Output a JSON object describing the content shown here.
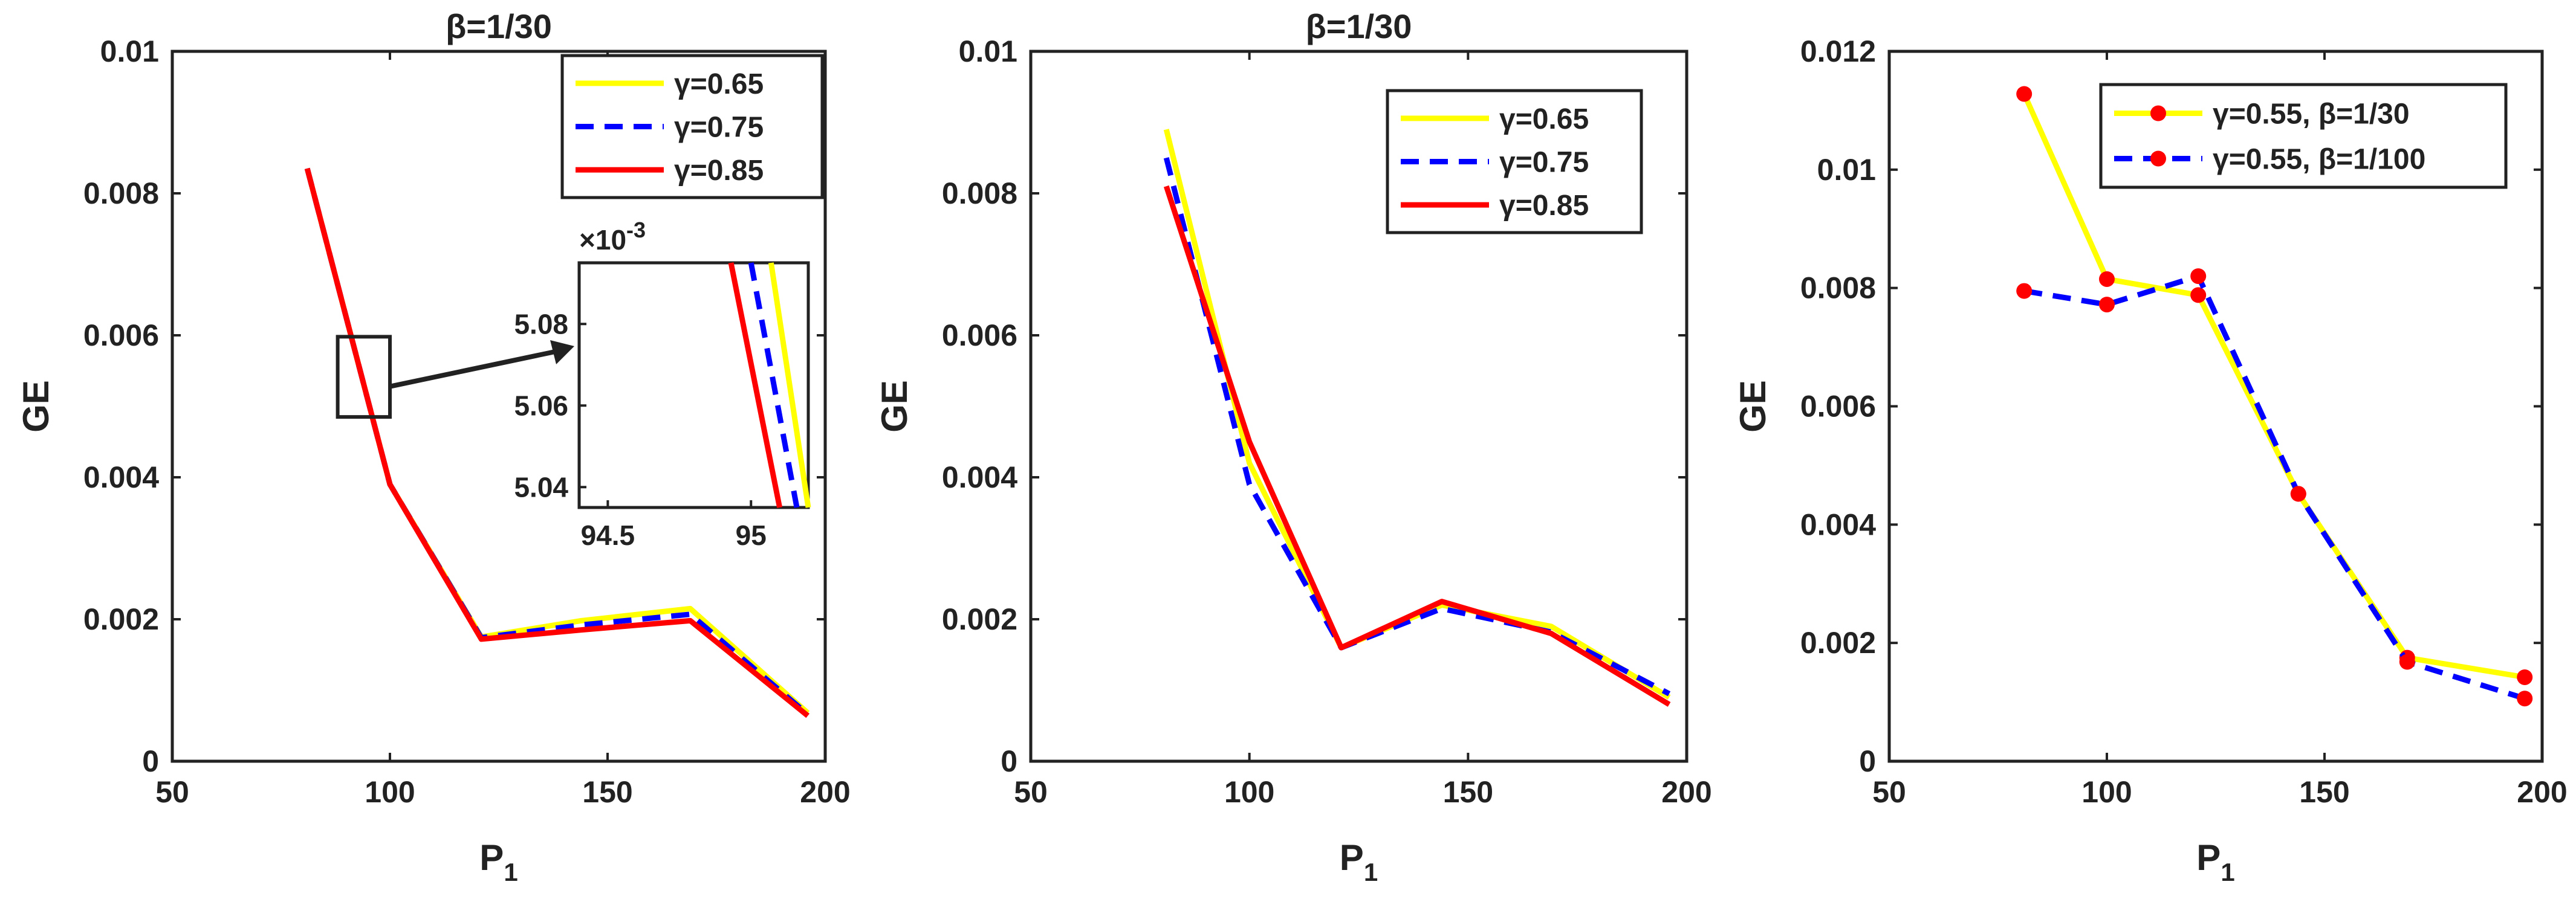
{
  "chart_data": [
    {
      "type": "line",
      "title": "β=1/30",
      "xlabel": "P",
      "xlabel_sub": "1",
      "ylabel": "GE",
      "xlim": [
        50,
        200
      ],
      "ylim": [
        0,
        0.01
      ],
      "x_ticks": [
        "50",
        "100",
        "150",
        "200"
      ],
      "y_ticks": [
        "0",
        "0.002",
        "0.004",
        "0.006",
        "0.008",
        "0.01"
      ],
      "legend_position": "top-right",
      "series": [
        {
          "name": "γ=0.65",
          "color": "#ffff00",
          "dash": "solid",
          "x": [
            81,
            100,
            121,
            144,
            169,
            196
          ],
          "y": [
            0.00835,
            0.0039,
            0.00175,
            0.00198,
            0.00215,
            0.00068
          ]
        },
        {
          "name": "γ=0.75",
          "color": "#0000ff",
          "dash": "dashed",
          "x": [
            81,
            100,
            121,
            144,
            169,
            196
          ],
          "y": [
            0.00835,
            0.0039,
            0.00174,
            0.00192,
            0.00207,
            0.00066
          ]
        },
        {
          "name": "γ=0.85",
          "color": "#ff0000",
          "dash": "solid",
          "x": [
            81,
            100,
            121,
            144,
            169,
            196
          ],
          "y": [
            0.00835,
            0.0039,
            0.00172,
            0.00185,
            0.00198,
            0.00064
          ]
        }
      ],
      "inset": {
        "exponent_label": "×10",
        "exponent_sup": "-3",
        "xlim": [
          94.4,
          95.2
        ],
        "ylim": [
          5.035,
          5.095
        ],
        "x_ticks": [
          "94.5",
          "95"
        ],
        "y_ticks": [
          "5.04",
          "5.06",
          "5.08"
        ],
        "series": [
          {
            "name": "γ=0.65",
            "color": "#ffff00",
            "dash": "solid",
            "x": [
              95.07,
              95.2
            ],
            "y": [
              5.095,
              5.035
            ]
          },
          {
            "name": "γ=0.75",
            "color": "#0000ff",
            "dash": "dashed",
            "x": [
              95.0,
              95.16
            ],
            "y": [
              5.095,
              5.035
            ]
          },
          {
            "name": "γ=0.85",
            "color": "#ff0000",
            "dash": "solid",
            "x": [
              94.93,
              95.1
            ],
            "y": [
              5.095,
              5.035
            ]
          }
        ]
      }
    },
    {
      "type": "line",
      "title": "β=1/30",
      "xlabel": "P",
      "xlabel_sub": "1",
      "ylabel": "GE",
      "xlim": [
        50,
        200
      ],
      "ylim": [
        0,
        0.01
      ],
      "x_ticks": [
        "50",
        "100",
        "150",
        "200"
      ],
      "y_ticks": [
        "0",
        "0.002",
        "0.004",
        "0.006",
        "0.008",
        "0.01"
      ],
      "legend_position": "top-right",
      "series": [
        {
          "name": "γ=0.65",
          "color": "#ffff00",
          "dash": "solid",
          "x": [
            81,
            100,
            121,
            144,
            169,
            196
          ],
          "y": [
            0.0089,
            0.0042,
            0.0016,
            0.0022,
            0.0019,
            0.0009
          ]
        },
        {
          "name": "γ=0.75",
          "color": "#0000ff",
          "dash": "dashed",
          "x": [
            81,
            100,
            121,
            144,
            169,
            196
          ],
          "y": [
            0.0085,
            0.0039,
            0.0016,
            0.00215,
            0.00182,
            0.00095
          ]
        },
        {
          "name": "γ=0.85",
          "color": "#ff0000",
          "dash": "solid",
          "x": [
            81,
            100,
            121,
            144,
            169,
            196
          ],
          "y": [
            0.0081,
            0.0045,
            0.0016,
            0.00225,
            0.0018,
            0.0008
          ]
        }
      ]
    },
    {
      "type": "line",
      "title": "",
      "xlabel": "P",
      "xlabel_sub": "1",
      "ylabel": "GE",
      "xlim": [
        50,
        200
      ],
      "ylim": [
        0,
        0.012
      ],
      "x_ticks": [
        "50",
        "100",
        "150",
        "200"
      ],
      "y_ticks": [
        "0",
        "0.002",
        "0.004",
        "0.006",
        "0.008",
        "0.01",
        "0.012"
      ],
      "legend_position": "top-right",
      "series": [
        {
          "name": "γ=0.55, β=1/30",
          "color": "#ffff00",
          "dash": "solid",
          "marker": "#ff0000",
          "x": [
            81,
            100,
            121,
            144,
            169,
            196
          ],
          "y": [
            0.01128,
            0.00815,
            0.00788,
            0.00452,
            0.00175,
            0.00142
          ]
        },
        {
          "name": "γ=0.55, β=1/100",
          "color": "#0000ff",
          "dash": "dashed",
          "marker": "#ff0000",
          "x": [
            81,
            100,
            121,
            144,
            169,
            196
          ],
          "y": [
            0.00795,
            0.00772,
            0.0082,
            0.00452,
            0.00168,
            0.00106
          ]
        }
      ]
    }
  ]
}
